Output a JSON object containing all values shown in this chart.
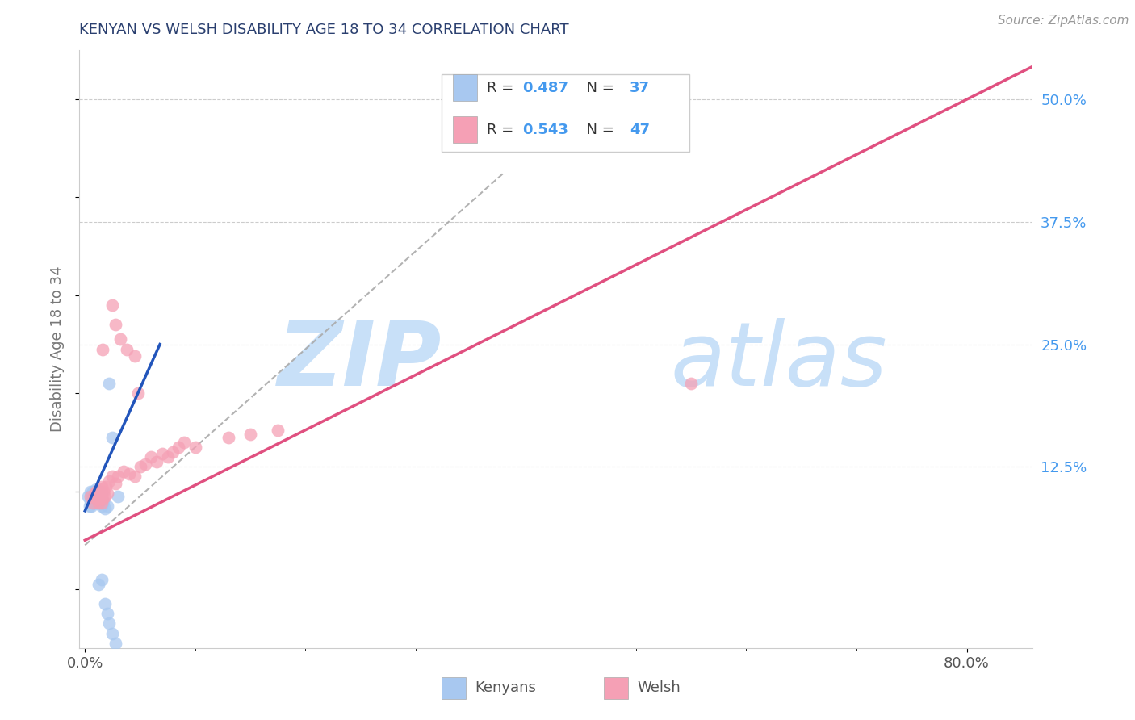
{
  "title": "KENYAN VS WELSH DISABILITY AGE 18 TO 34 CORRELATION CHART",
  "source": "Source: ZipAtlas.com",
  "ylabel": "Disability Age 18 to 34",
  "y_tick_labels": [
    "12.5%",
    "25.0%",
    "37.5%",
    "50.0%"
  ],
  "y_tick_values": [
    0.125,
    0.25,
    0.375,
    0.5
  ],
  "xmin": -0.005,
  "xmax": 0.86,
  "ymin": -0.06,
  "ymax": 0.55,
  "kenyan_color": "#a8c8f0",
  "welsh_color": "#f5a0b5",
  "kenyan_line_color": "#2255bb",
  "welsh_line_color": "#e05080",
  "legend_R_kenyan": "0.487",
  "legend_N_kenyan": "37",
  "legend_R_welsh": "0.543",
  "legend_N_welsh": "47",
  "title_color": "#2a3f6f",
  "axis_label_color": "#777777",
  "tick_color_right": "#4499ee",
  "background_color": "#ffffff",
  "grid_color": "#cccccc",
  "watermark_zip": "ZIP",
  "watermark_atlas": "atlas",
  "watermark_color": "#c8e0f8",
  "kenyan_points": [
    [
      0.003,
      0.095
    ],
    [
      0.004,
      0.085
    ],
    [
      0.005,
      0.09
    ],
    [
      0.005,
      0.1
    ],
    [
      0.006,
      0.085
    ],
    [
      0.007,
      0.095
    ],
    [
      0.007,
      0.1
    ],
    [
      0.008,
      0.088
    ],
    [
      0.008,
      0.095
    ],
    [
      0.009,
      0.092
    ],
    [
      0.009,
      0.098
    ],
    [
      0.01,
      0.088
    ],
    [
      0.01,
      0.095
    ],
    [
      0.01,
      0.102
    ],
    [
      0.011,
      0.09
    ],
    [
      0.011,
      0.097
    ],
    [
      0.012,
      0.093
    ],
    [
      0.012,
      0.1
    ],
    [
      0.013,
      0.088
    ],
    [
      0.013,
      0.095
    ],
    [
      0.014,
      0.092
    ],
    [
      0.015,
      0.085
    ],
    [
      0.015,
      0.098
    ],
    [
      0.016,
      0.088
    ],
    [
      0.017,
      0.09
    ],
    [
      0.018,
      0.082
    ],
    [
      0.02,
      0.085
    ],
    [
      0.022,
      0.21
    ],
    [
      0.025,
      0.155
    ],
    [
      0.03,
      0.095
    ],
    [
      0.012,
      0.005
    ],
    [
      0.015,
      0.01
    ],
    [
      0.018,
      -0.015
    ],
    [
      0.02,
      -0.025
    ],
    [
      0.022,
      -0.035
    ],
    [
      0.025,
      -0.045
    ],
    [
      0.028,
      -0.055
    ]
  ],
  "welsh_points": [
    [
      0.005,
      0.095
    ],
    [
      0.007,
      0.088
    ],
    [
      0.008,
      0.095
    ],
    [
      0.009,
      0.098
    ],
    [
      0.01,
      0.092
    ],
    [
      0.01,
      0.1
    ],
    [
      0.011,
      0.095
    ],
    [
      0.012,
      0.088
    ],
    [
      0.012,
      0.098
    ],
    [
      0.013,
      0.092
    ],
    [
      0.013,
      0.102
    ],
    [
      0.014,
      0.095
    ],
    [
      0.015,
      0.088
    ],
    [
      0.015,
      0.105
    ],
    [
      0.016,
      0.092
    ],
    [
      0.017,
      0.1
    ],
    [
      0.018,
      0.095
    ],
    [
      0.019,
      0.105
    ],
    [
      0.02,
      0.098
    ],
    [
      0.022,
      0.11
    ],
    [
      0.025,
      0.115
    ],
    [
      0.028,
      0.108
    ],
    [
      0.03,
      0.115
    ],
    [
      0.035,
      0.12
    ],
    [
      0.04,
      0.118
    ],
    [
      0.045,
      0.115
    ],
    [
      0.05,
      0.125
    ],
    [
      0.055,
      0.128
    ],
    [
      0.06,
      0.135
    ],
    [
      0.065,
      0.13
    ],
    [
      0.07,
      0.138
    ],
    [
      0.075,
      0.135
    ],
    [
      0.08,
      0.14
    ],
    [
      0.085,
      0.145
    ],
    [
      0.09,
      0.15
    ],
    [
      0.1,
      0.145
    ],
    [
      0.13,
      0.155
    ],
    [
      0.15,
      0.158
    ],
    [
      0.175,
      0.162
    ],
    [
      0.55,
      0.21
    ],
    [
      0.016,
      0.245
    ],
    [
      0.025,
      0.29
    ],
    [
      0.028,
      0.27
    ],
    [
      0.032,
      0.255
    ],
    [
      0.038,
      0.245
    ],
    [
      0.045,
      0.238
    ],
    [
      0.048,
      0.2
    ]
  ],
  "legend_box_color": "#ffffff",
  "legend_border_color": "#cccccc"
}
